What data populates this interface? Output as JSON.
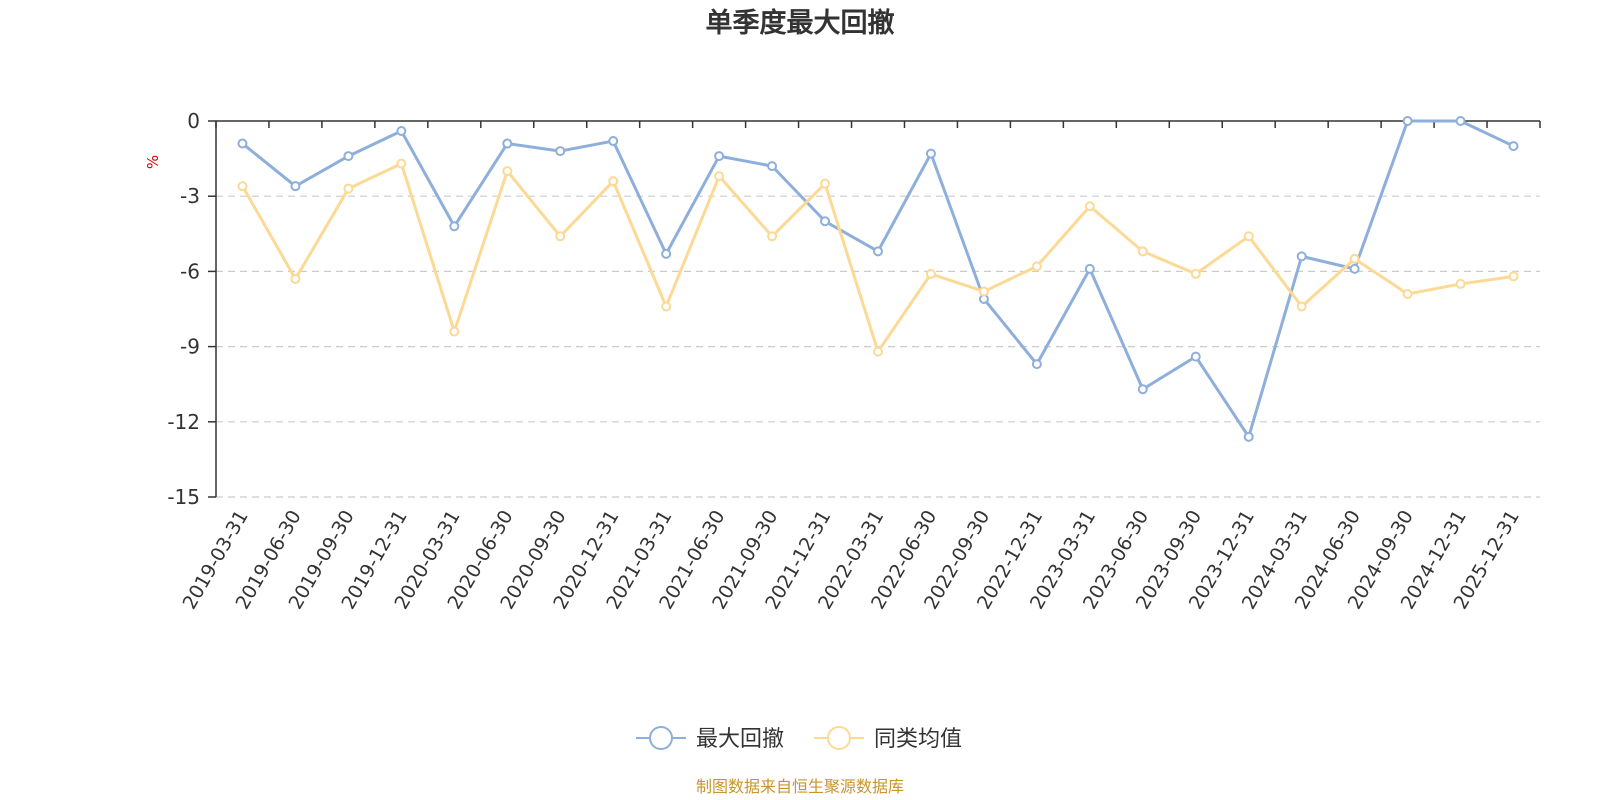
{
  "chart_data": {
    "type": "line",
    "title": "单季度最大回撤",
    "yunit": "%",
    "ylim": [
      -15,
      0
    ],
    "yticks": [
      0,
      -3,
      -6,
      -9,
      -12,
      -15
    ],
    "grid": "horizontal-dashed",
    "legend_position": "bottom-center",
    "x": [
      "2019-03-31",
      "2019-06-30",
      "2019-09-30",
      "2019-12-31",
      "2020-03-31",
      "2020-06-30",
      "2020-09-30",
      "2020-12-31",
      "2021-03-31",
      "2021-06-30",
      "2021-09-30",
      "2021-12-31",
      "2022-03-31",
      "2022-06-30",
      "2022-09-30",
      "2022-12-31",
      "2023-03-31",
      "2023-06-30",
      "2023-09-30",
      "2023-12-31",
      "2024-03-31",
      "2024-06-30",
      "2024-09-30",
      "2024-12-31",
      "2025-12-31"
    ],
    "series": [
      {
        "name": "最大回撤",
        "color": "#8eafdb",
        "values": [
          -0.9,
          -2.6,
          -1.4,
          -0.4,
          -4.2,
          -0.9,
          -1.2,
          -0.8,
          -5.3,
          -1.4,
          -1.8,
          -4.0,
          -5.2,
          -1.3,
          -7.1,
          -9.7,
          -5.9,
          -10.7,
          -9.4,
          -12.6,
          -5.4,
          -5.9,
          0.0,
          0.0,
          -1.0
        ]
      },
      {
        "name": "同类均值",
        "color": "#fcd994",
        "values": [
          -2.6,
          -6.3,
          -2.7,
          -1.7,
          -8.4,
          -2.0,
          -4.6,
          -2.4,
          -7.4,
          -2.2,
          -4.6,
          -2.5,
          -9.2,
          -6.1,
          -6.8,
          -5.8,
          -3.4,
          -5.2,
          -6.1,
          -4.6,
          -7.4,
          -5.5,
          -6.9,
          -6.5,
          -6.2
        ]
      }
    ],
    "source_note": "制图数据来自恒生聚源数据库"
  }
}
